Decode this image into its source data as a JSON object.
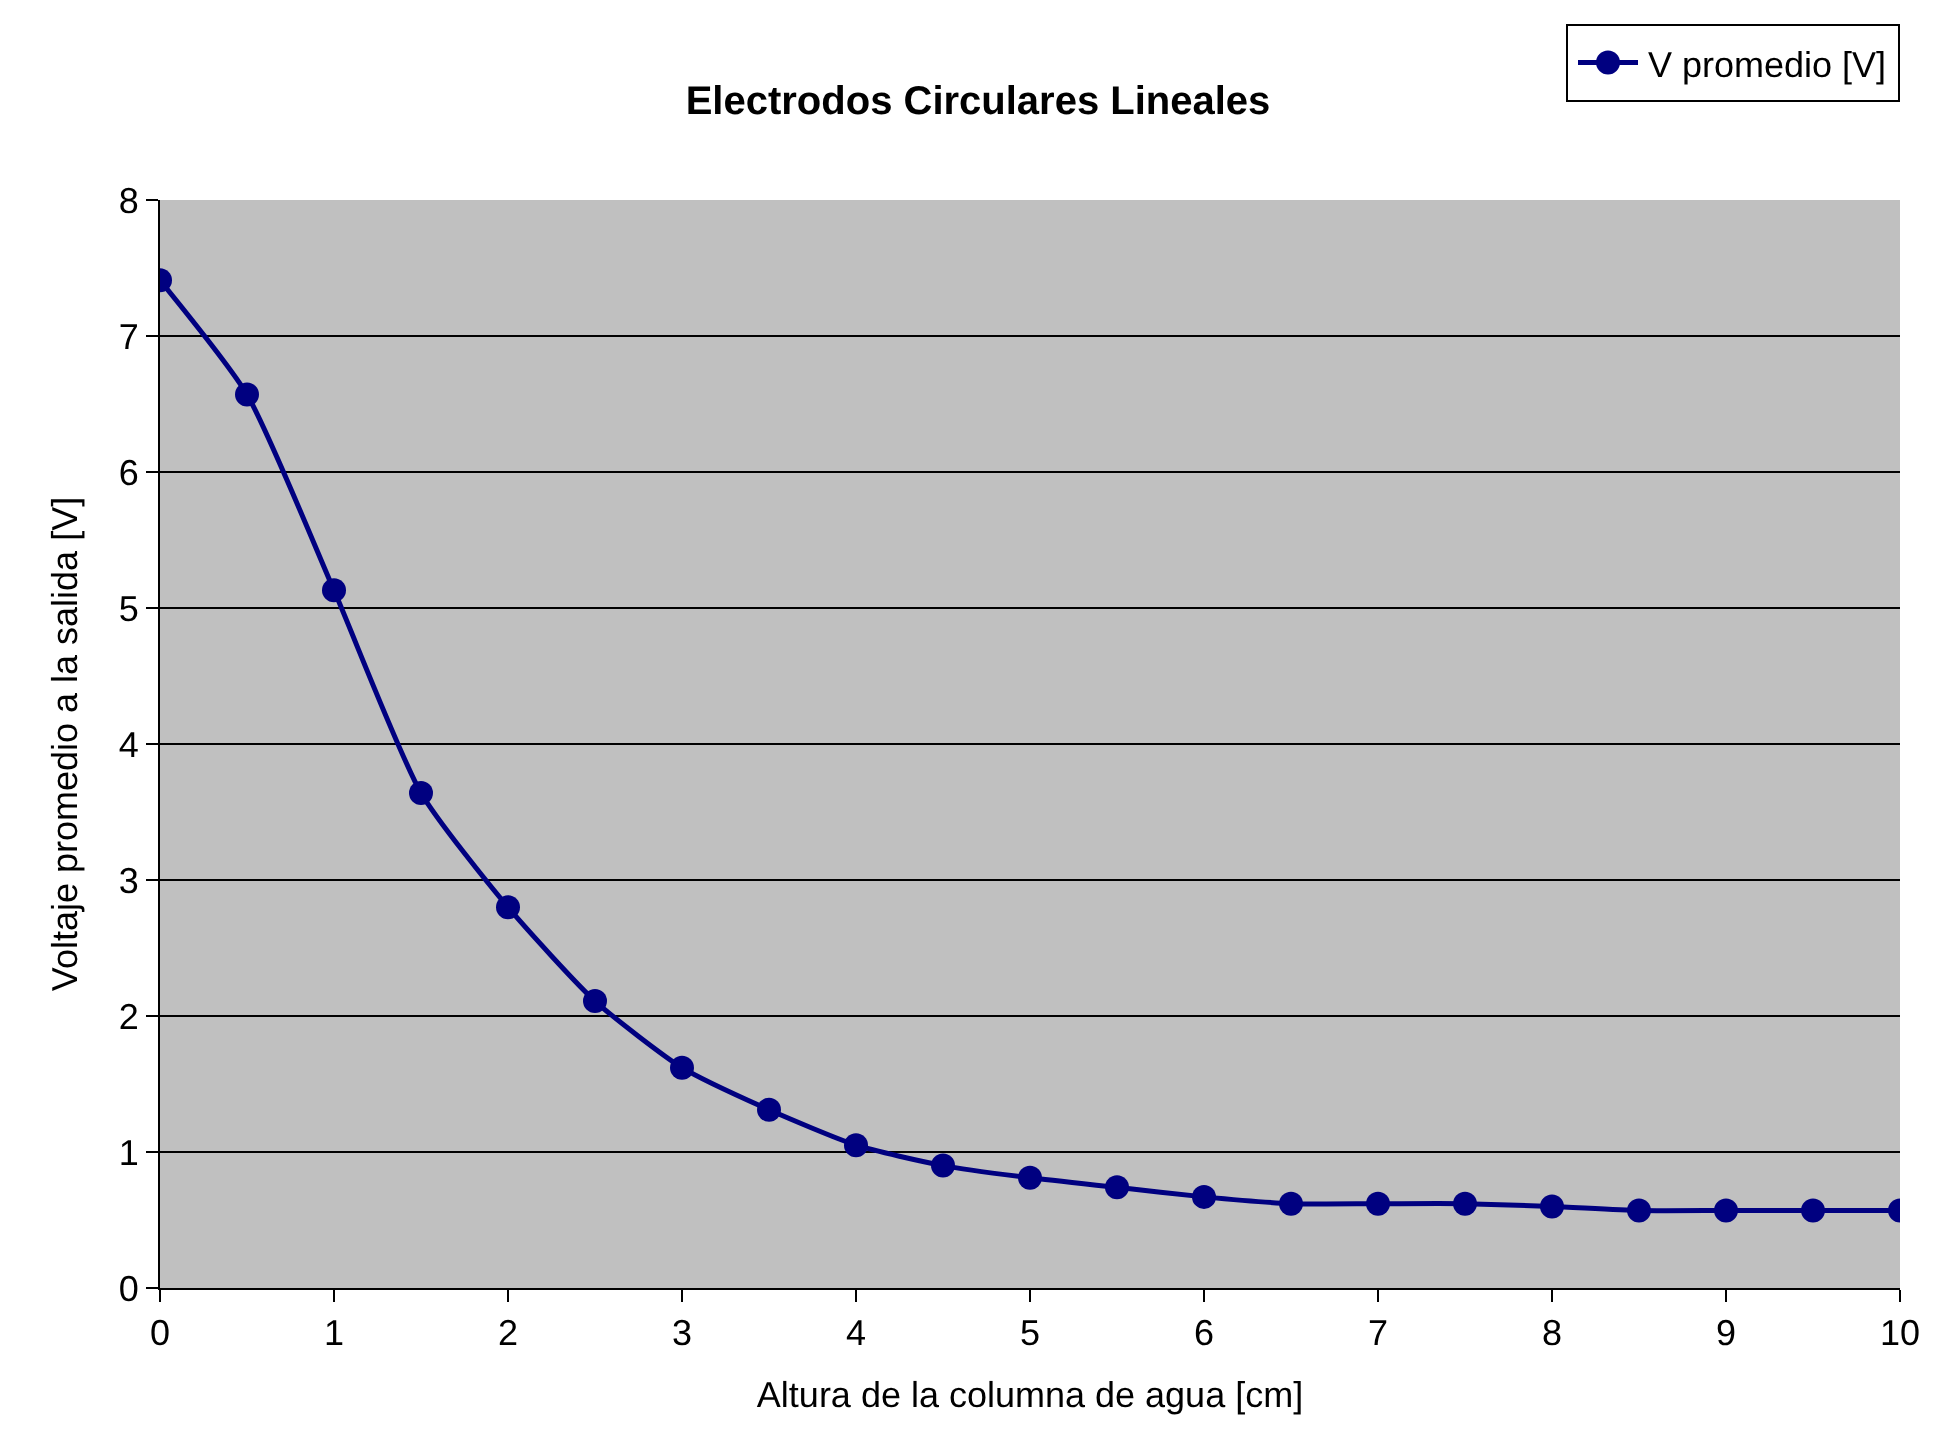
{
  "chart_data": {
    "type": "line",
    "title": "Electrodos Circulares Lineales",
    "xlabel": "Altura de la columna de agua [cm]",
    "ylabel": "Voltaje promedio a la salida [V]",
    "x": [
      0,
      0.5,
      1,
      1.5,
      2,
      2.5,
      3,
      3.5,
      4,
      4.5,
      5,
      5.5,
      6,
      6.5,
      7,
      7.5,
      8,
      8.5,
      9,
      9.5,
      10
    ],
    "series": [
      {
        "name": "V promedio [V]",
        "color": "#000080",
        "values": [
          7.41,
          6.57,
          5.13,
          3.64,
          2.8,
          2.11,
          1.62,
          1.31,
          1.05,
          0.9,
          0.81,
          0.74,
          0.67,
          0.62,
          0.62,
          0.62,
          0.6,
          0.57,
          0.57,
          0.57,
          0.57
        ]
      }
    ],
    "xlim": [
      0,
      10
    ],
    "xticks": [
      0,
      1,
      2,
      3,
      4,
      5,
      6,
      7,
      8,
      9,
      10
    ],
    "ylim": [
      0,
      8
    ],
    "yticks": [
      0,
      1,
      2,
      3,
      4,
      5,
      6,
      7,
      8
    ],
    "grid": "y",
    "legend": "top right",
    "marker": "circle",
    "line_style": "solid"
  }
}
